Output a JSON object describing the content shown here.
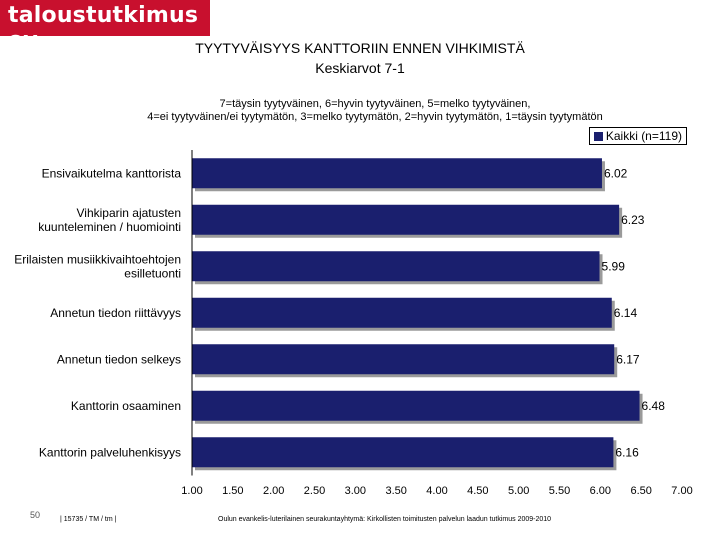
{
  "brand": {
    "name": "taloustutkimus oy",
    "color": "#c8102e"
  },
  "header": {
    "title": "TYYTYVÄISYYS KANTTORIIN ENNEN VIHKIMISTÄ",
    "subtitle": "Keskiarvot 7-1",
    "scale_note_line1": "7=täysin tyytyväinen, 6=hyvin tyytyväinen, 5=melko tyytyväinen,",
    "scale_note_line2": "4=ei tyytyväinen/ei tyytymätön, 3=melko tyytymätön, 2=hyvin tyytymätön, 1=täysin tyytymätön"
  },
  "chart_data": {
    "type": "bar",
    "orientation": "horizontal",
    "categories": [
      [
        "Ensivaikutelma kanttorista"
      ],
      [
        "Vihkiparin ajatusten",
        "kuunteleminen / huomiointi"
      ],
      [
        "Erilaisten musiikkivaihtoehtojen",
        "esilletuonti"
      ],
      [
        "Annetun tiedon riittävyys"
      ],
      [
        "Annetun tiedon selkeys"
      ],
      [
        "Kanttorin osaaminen"
      ],
      [
        "Kanttorin palveluhenkisyys"
      ]
    ],
    "series": [
      {
        "name": "Kaikki (n=119)",
        "values": [
          6.02,
          6.23,
          5.99,
          6.14,
          6.17,
          6.48,
          6.16
        ],
        "color": "#1a1f6e"
      }
    ],
    "value_labels": [
      "6.02",
      "6.23",
      "5.99",
      "6.14",
      "6.17",
      "6.48",
      "6.16"
    ],
    "xlim": [
      1,
      7
    ],
    "xticks": [
      "1.00",
      "1.50",
      "2.00",
      "2.50",
      "3.00",
      "3.50",
      "4.00",
      "4.50",
      "5.00",
      "5.50",
      "6.00",
      "6.50",
      "7.00"
    ],
    "grid": false,
    "legend_position": "top-right"
  },
  "footer": {
    "page_number": "50",
    "code": "| 15735 / TM / tm |",
    "source": "Oulun evankelis-luterilainen seurakuntayhtymä: Kirkollisten toimitusten palvelun laadun tutkimus 2009-2010"
  }
}
